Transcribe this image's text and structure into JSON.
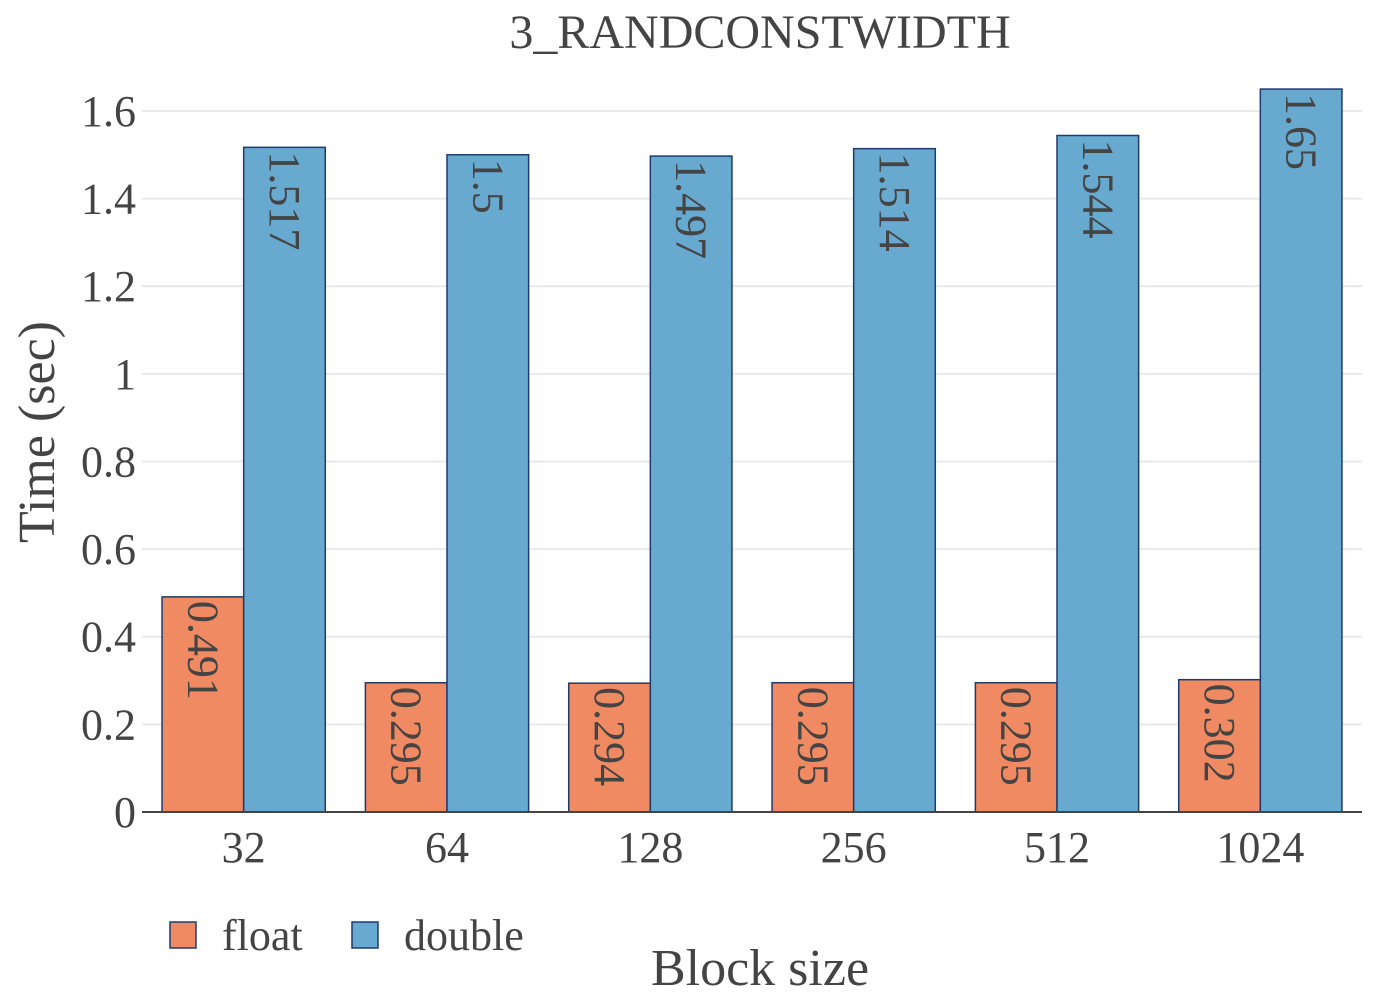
{
  "chart_data": {
    "type": "bar",
    "title": "3_RANDCONSTWIDTH",
    "xlabel": "Block size",
    "ylabel": "Time (sec)",
    "categories": [
      "32",
      "64",
      "128",
      "256",
      "512",
      "1024"
    ],
    "series": [
      {
        "name": "float",
        "color": "#ef8a62",
        "values": [
          0.491,
          0.295,
          0.294,
          0.295,
          0.295,
          0.302
        ],
        "labels": [
          "0.491",
          "0.295",
          "0.294",
          "0.295",
          "0.295",
          "0.302"
        ]
      },
      {
        "name": "double",
        "color": "#67a9cf",
        "values": [
          1.517,
          1.5,
          1.497,
          1.514,
          1.544,
          1.65
        ],
        "labels": [
          "1.517",
          "1.5",
          "1.497",
          "1.514",
          "1.544",
          "1.65"
        ]
      }
    ],
    "ylim": [
      0,
      1.6524
    ],
    "yticks": [
      0,
      0.2,
      0.4,
      0.6,
      0.8,
      1,
      1.2,
      1.4,
      1.6
    ],
    "ytick_labels": [
      "0",
      "0.2",
      "0.4",
      "0.6",
      "0.8",
      "1",
      "1.2",
      "1.4",
      "1.6"
    ],
    "grid": true,
    "legend_position": "bottom-left",
    "bar_outline_color": "#1f3b6e"
  }
}
